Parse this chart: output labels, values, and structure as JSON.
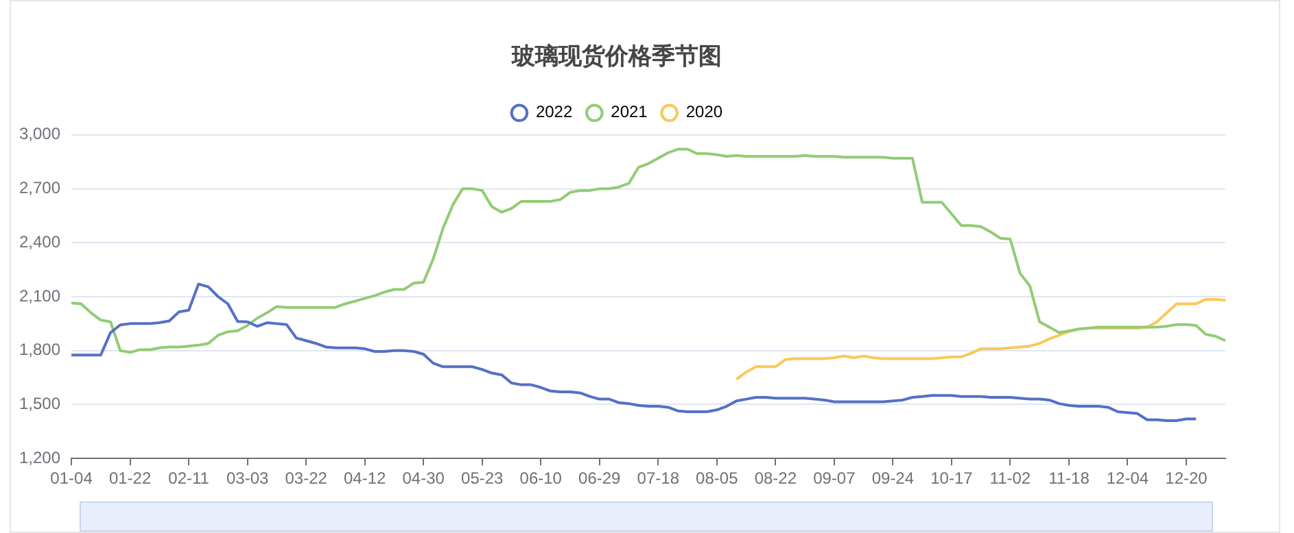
{
  "chart_data": {
    "type": "line",
    "title": "玻璃现货价格季节图",
    "categories": [
      "01-04",
      null,
      null,
      null,
      null,
      null,
      "01-22",
      null,
      null,
      null,
      null,
      null,
      "02-11",
      null,
      null,
      null,
      null,
      null,
      "03-03",
      null,
      null,
      null,
      null,
      null,
      "03-22",
      null,
      null,
      null,
      null,
      null,
      "04-12",
      null,
      null,
      null,
      null,
      null,
      "04-30",
      null,
      null,
      null,
      null,
      null,
      "05-23",
      null,
      null,
      null,
      null,
      null,
      "06-10",
      null,
      null,
      null,
      null,
      null,
      "06-29",
      null,
      null,
      null,
      null,
      null,
      "07-18",
      null,
      null,
      null,
      null,
      null,
      "08-05",
      null,
      null,
      null,
      null,
      null,
      "08-22",
      null,
      null,
      null,
      null,
      null,
      "09-07",
      null,
      null,
      null,
      null,
      null,
      "09-24",
      null,
      null,
      null,
      null,
      null,
      "10-17",
      null,
      null,
      null,
      null,
      null,
      "11-02",
      null,
      null,
      null,
      null,
      null,
      "11-18",
      null,
      null,
      null,
      null,
      null,
      "12-04",
      null,
      null,
      null,
      null,
      null,
      "12-20",
      null,
      null,
      null,
      null
    ],
    "series": [
      {
        "name": "2022",
        "color": "#5470c6",
        "values": [
          1775,
          1775,
          1775,
          1775,
          1900,
          1943,
          1950,
          1950,
          1950,
          1955,
          1965,
          2015,
          2025,
          2170,
          2155,
          2100,
          2060,
          1962,
          1960,
          1935,
          1955,
          1950,
          1945,
          1870,
          1855,
          1840,
          1820,
          1815,
          1815,
          1815,
          1810,
          1795,
          1795,
          1800,
          1800,
          1795,
          1780,
          1730,
          1710,
          1710,
          1710,
          1710,
          1695,
          1675,
          1665,
          1620,
          1610,
          1610,
          1595,
          1575,
          1570,
          1570,
          1565,
          1545,
          1530,
          1530,
          1510,
          1505,
          1495,
          1490,
          1490,
          1485,
          1465,
          1460,
          1460,
          1460,
          1470,
          1490,
          1520,
          1530,
          1540,
          1540,
          1535,
          1535,
          1535,
          1535,
          1530,
          1525,
          1515,
          1515,
          1515,
          1515,
          1515,
          1515,
          1520,
          1525,
          1540,
          1545,
          1550,
          1550,
          1550,
          1545,
          1545,
          1545,
          1540,
          1540,
          1540,
          1535,
          1530,
          1530,
          1525,
          1505,
          1495,
          1490,
          1490,
          1490,
          1485,
          1460,
          1455,
          1450,
          1415,
          1415,
          1410,
          1410,
          1420,
          1420,
          null,
          null,
          null
        ]
      },
      {
        "name": "2021",
        "color": "#91cc75",
        "values": [
          2065,
          2060,
          2010,
          1970,
          1960,
          1800,
          1790,
          1805,
          1805,
          1815,
          1820,
          1820,
          1825,
          1830,
          1840,
          1885,
          1905,
          1910,
          1940,
          1980,
          2010,
          2045,
          2040,
          2040,
          2040,
          2040,
          2040,
          2040,
          2060,
          2075,
          2090,
          2105,
          2125,
          2140,
          2140,
          2175,
          2180,
          2310,
          2480,
          2610,
          2700,
          2700,
          2690,
          2600,
          2570,
          2590,
          2630,
          2630,
          2630,
          2630,
          2640,
          2680,
          2690,
          2690,
          2700,
          2700,
          2710,
          2730,
          2820,
          2840,
          2870,
          2900,
          2920,
          2920,
          2895,
          2895,
          2890,
          2880,
          2885,
          2880,
          2880,
          2880,
          2880,
          2880,
          2880,
          2885,
          2880,
          2880,
          2880,
          2875,
          2875,
          2875,
          2875,
          2875,
          2870,
          2870,
          2870,
          2625,
          2625,
          2625,
          2560,
          2495,
          2495,
          2490,
          2460,
          2425,
          2420,
          2230,
          2160,
          1960,
          1930,
          1900,
          1910,
          1920,
          1925,
          1930,
          1930,
          1930,
          1930,
          1930,
          1930,
          1930,
          1935,
          1945,
          1945,
          1940,
          1890,
          1880,
          1855
        ]
      },
      {
        "name": "2020",
        "color": "#fac858",
        "values": [
          null,
          null,
          null,
          null,
          null,
          null,
          null,
          null,
          null,
          null,
          null,
          null,
          null,
          null,
          null,
          null,
          null,
          null,
          null,
          null,
          null,
          null,
          null,
          null,
          null,
          null,
          null,
          null,
          null,
          null,
          null,
          null,
          null,
          null,
          null,
          null,
          null,
          null,
          null,
          null,
          null,
          null,
          null,
          null,
          null,
          null,
          null,
          null,
          null,
          null,
          null,
          null,
          null,
          null,
          null,
          null,
          null,
          null,
          null,
          null,
          null,
          null,
          null,
          null,
          null,
          null,
          null,
          null,
          1640,
          1680,
          1710,
          1710,
          1710,
          1750,
          1755,
          1755,
          1755,
          1755,
          1760,
          1770,
          1760,
          1770,
          1760,
          1755,
          1755,
          1755,
          1755,
          1755,
          1755,
          1760,
          1765,
          1765,
          1785,
          1810,
          1810,
          1810,
          1815,
          1820,
          1825,
          1840,
          1865,
          1885,
          1905,
          1920,
          1925,
          1925,
          1925,
          1925,
          1925,
          1925,
          1930,
          1960,
          2010,
          2060,
          2060,
          2060,
          2085,
          2085,
          2080
        ]
      }
    ],
    "ylim": [
      1200,
      3000
    ],
    "yticks": [
      {
        "value": 1200,
        "label": "1,200"
      },
      {
        "value": 1500,
        "label": "1,500"
      },
      {
        "value": 1800,
        "label": "1,800"
      },
      {
        "value": 2100,
        "label": "2,100"
      },
      {
        "value": 2400,
        "label": "2,400"
      },
      {
        "value": 2700,
        "label": "2,700"
      },
      {
        "value": 3000,
        "label": "3,000"
      }
    ],
    "grid": "y",
    "legend": "top",
    "marker": "none",
    "line_style": "solid"
  }
}
